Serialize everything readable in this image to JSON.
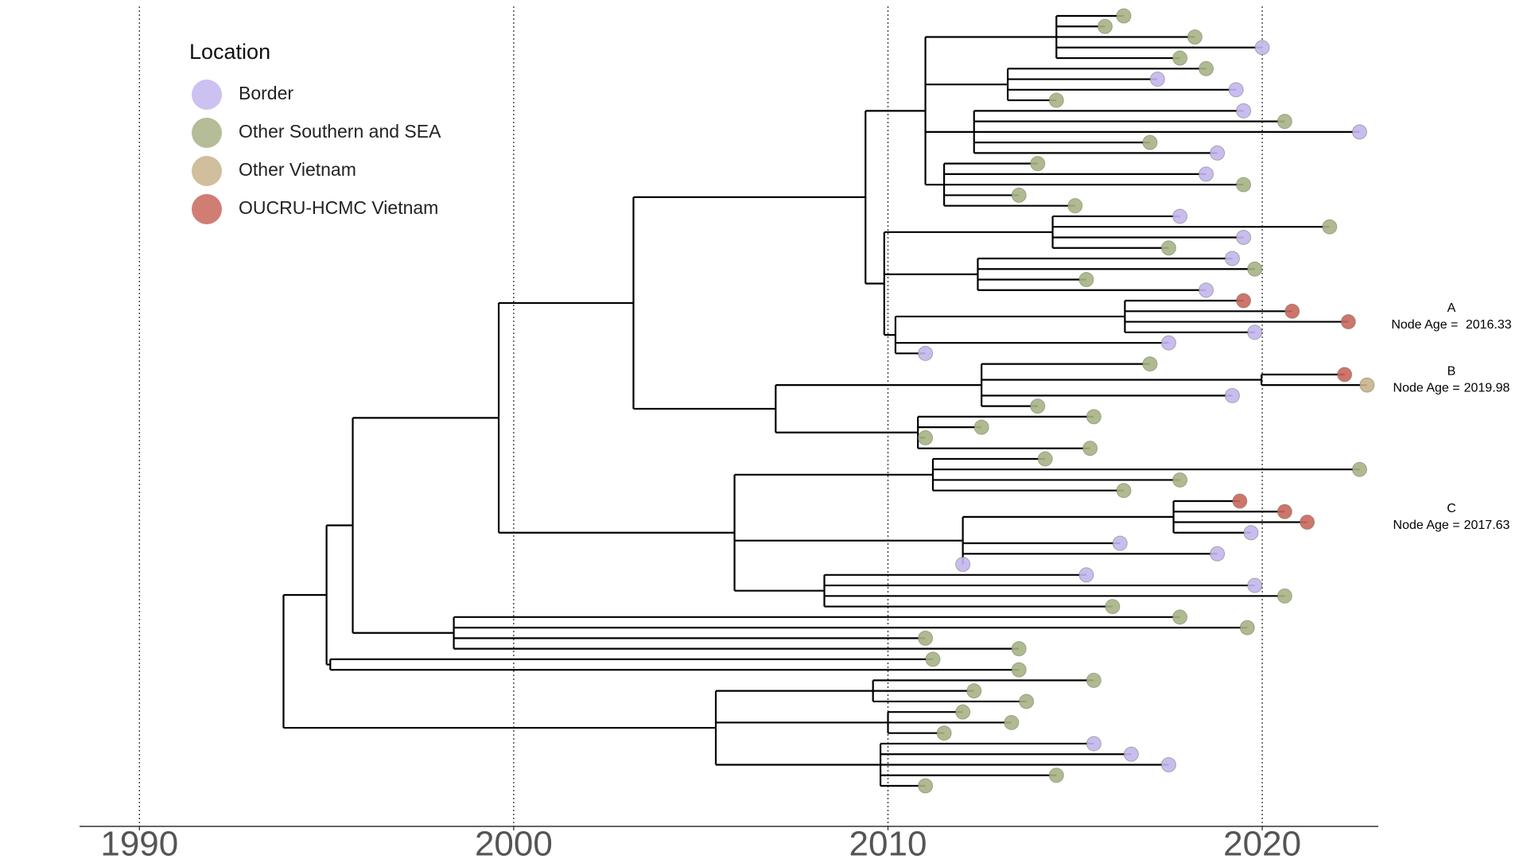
{
  "chart_data": {
    "type": "tree",
    "legend": {
      "title": "Location",
      "position": "top-left",
      "names": [
        "Border",
        "Other Southern and SEA",
        "Other Vietnam",
        "OUCRU-HCMC Vietnam"
      ],
      "colors": [
        "#c3b6ee",
        "#a7b285",
        "#c8b38c",
        "#c9665c"
      ]
    },
    "xlim": [
      1988.4,
      2023.1
    ],
    "xticks": [
      1990,
      2000,
      2010,
      2020
    ],
    "grid": true,
    "annotations": [
      {
        "label": "A",
        "text": "Node Age = ",
        "value": 2016.33
      },
      {
        "label": "B",
        "text": "Node Age =",
        "value": 2019.98
      },
      {
        "label": "C",
        "text": "Node Age =",
        "value": 2017.63
      }
    ],
    "tree": {
      "t": 1993.85,
      "c": [
        {
          "t": 1995.0,
          "c": [
            {
              "t": 1995.7,
              "c": [
                {
                  "t": 1999.6,
                  "c": [
                    {
                      "t": 2003.2,
                      "c": [
                        {
                          "t": 2009.4,
                          "c": [
                            {
                              "t": 2011.0,
                              "c": [
                                {
                                  "t": 2014.5,
                                  "c": [
                                    {
                                      "t": 2016.3,
                                      "loc": 1
                                    },
                                    {
                                      "t": 2015.8,
                                      "loc": 1
                                    },
                                    {
                                      "t": 2018.2,
                                      "loc": 1
                                    },
                                    {
                                      "t": 2020.0,
                                      "loc": 0
                                    },
                                    {
                                      "t": 2017.8,
                                      "loc": 1
                                    }
                                  ]
                                },
                                {
                                  "t": 2013.2,
                                  "c": [
                                    {
                                      "t": 2018.5,
                                      "loc": 1
                                    },
                                    {
                                      "t": 2017.2,
                                      "loc": 0
                                    },
                                    {
                                      "t": 2019.3,
                                      "loc": 0
                                    },
                                    {
                                      "t": 2014.5,
                                      "loc": 1
                                    }
                                  ]
                                },
                                {
                                  "t": 2012.3,
                                  "c": [
                                    {
                                      "t": 2019.5,
                                      "loc": 0
                                    },
                                    {
                                      "t": 2020.6,
                                      "loc": 1
                                    },
                                    {
                                      "t": 2022.6,
                                      "loc": 0
                                    },
                                    {
                                      "t": 2017.0,
                                      "loc": 1
                                    },
                                    {
                                      "t": 2018.8,
                                      "loc": 0
                                    }
                                  ]
                                },
                                {
                                  "t": 2011.5,
                                  "c": [
                                    {
                                      "t": 2014.0,
                                      "loc": 1
                                    },
                                    {
                                      "t": 2018.5,
                                      "loc": 0
                                    },
                                    {
                                      "t": 2019.5,
                                      "loc": 1
                                    },
                                    {
                                      "t": 2013.5,
                                      "loc": 1
                                    },
                                    {
                                      "t": 2015.0,
                                      "loc": 1
                                    }
                                  ]
                                }
                              ]
                            },
                            {
                              "t": 2009.9,
                              "c": [
                                {
                                  "t": 2014.4,
                                  "c": [
                                    {
                                      "t": 2017.8,
                                      "loc": 0
                                    },
                                    {
                                      "t": 2021.8,
                                      "loc": 1
                                    },
                                    {
                                      "t": 2019.5,
                                      "loc": 0
                                    },
                                    {
                                      "t": 2017.5,
                                      "loc": 1
                                    }
                                  ]
                                },
                                {
                                  "t": 2012.4,
                                  "c": [
                                    {
                                      "t": 2019.2,
                                      "loc": 0
                                    },
                                    {
                                      "t": 2019.8,
                                      "loc": 1
                                    },
                                    {
                                      "t": 2015.3,
                                      "loc": 1
                                    },
                                    {
                                      "t": 2018.5,
                                      "loc": 0
                                    }
                                  ]
                                },
                                {
                                  "t": 2010.2,
                                  "c": [
                                    {
                                      "t": 2016.33,
                                      "c": [
                                        {
                                          "t": 2019.5,
                                          "loc": 3
                                        },
                                        {
                                          "t": 2020.8,
                                          "loc": 3
                                        },
                                        {
                                          "t": 2022.3,
                                          "loc": 3
                                        },
                                        {
                                          "t": 2019.8,
                                          "loc": 0
                                        }
                                      ]
                                    },
                                    {
                                      "t": 2017.5,
                                      "loc": 0
                                    },
                                    {
                                      "t": 2011.0,
                                      "loc": 0
                                    }
                                  ]
                                }
                              ]
                            }
                          ]
                        },
                        {
                          "t": 2007.0,
                          "c": [
                            {
                              "t": 2012.5,
                              "c": [
                                {
                                  "t": 2017.0,
                                  "loc": 1
                                },
                                {
                                  "t": 2019.98,
                                  "c": [
                                    {
                                      "t": 2022.2,
                                      "loc": 3
                                    },
                                    {
                                      "t": 2022.8,
                                      "loc": 2
                                    }
                                  ]
                                },
                                {
                                  "t": 2019.2,
                                  "loc": 0
                                },
                                {
                                  "t": 2014.0,
                                  "loc": 1
                                }
                              ]
                            },
                            {
                              "t": 2010.8,
                              "c": [
                                {
                                  "t": 2015.5,
                                  "loc": 1
                                },
                                {
                                  "t": 2012.5,
                                  "loc": 1
                                },
                                {
                                  "t": 2011.0,
                                  "loc": 1
                                },
                                {
                                  "t": 2015.4,
                                  "loc": 1
                                }
                              ]
                            }
                          ]
                        }
                      ]
                    },
                    {
                      "t": 2005.9,
                      "c": [
                        {
                          "t": 2011.2,
                          "c": [
                            {
                              "t": 2014.2,
                              "loc": 1
                            },
                            {
                              "t": 2022.6,
                              "loc": 1
                            },
                            {
                              "t": 2017.8,
                              "loc": 1
                            },
                            {
                              "t": 2016.3,
                              "loc": 1
                            }
                          ]
                        },
                        {
                          "t": 2012.0,
                          "c": [
                            {
                              "t": 2017.63,
                              "c": [
                                {
                                  "t": 2019.4,
                                  "loc": 3
                                },
                                {
                                  "t": 2020.6,
                                  "loc": 3
                                },
                                {
                                  "t": 2021.2,
                                  "loc": 3
                                },
                                {
                                  "t": 2019.7,
                                  "loc": 0
                                }
                              ]
                            },
                            {
                              "t": 2016.2,
                              "loc": 0
                            },
                            {
                              "t": 2018.8,
                              "loc": 0
                            },
                            {
                              "t": 2012.0,
                              "loc": 0
                            }
                          ]
                        },
                        {
                          "t": 2008.3,
                          "c": [
                            {
                              "t": 2015.3,
                              "loc": 0
                            },
                            {
                              "t": 2019.8,
                              "loc": 0
                            },
                            {
                              "t": 2020.6,
                              "loc": 1
                            },
                            {
                              "t": 2016.0,
                              "loc": 1
                            }
                          ]
                        }
                      ]
                    }
                  ]
                },
                {
                  "t": 1998.4,
                  "c": [
                    {
                      "t": 2017.8,
                      "loc": 1
                    },
                    {
                      "t": 2019.6,
                      "loc": 1
                    },
                    {
                      "t": 2011.0,
                      "loc": 1
                    },
                    {
                      "t": 2013.5,
                      "loc": 1
                    }
                  ]
                }
              ]
            },
            {
              "t": 1995.1,
              "c": [
                {
                  "t": 2011.2,
                  "loc": 1
                },
                {
                  "t": 2013.5,
                  "loc": 1
                }
              ]
            }
          ]
        },
        {
          "t": 1997.1,
          "c": [
            {
              "t": 2005.4,
              "c": [
                {
                  "t": 2009.6,
                  "c": [
                    {
                      "t": 2015.5,
                      "loc": 1
                    },
                    {
                      "t": 2012.3,
                      "loc": 1
                    },
                    {
                      "t": 2013.7,
                      "loc": 1
                    }
                  ]
                },
                {
                  "t": 2010.0,
                  "c": [
                    {
                      "t": 2012.0,
                      "loc": 1
                    },
                    {
                      "t": 2013.3,
                      "loc": 1
                    },
                    {
                      "t": 2011.5,
                      "loc": 1
                    }
                  ]
                },
                {
                  "t": 2009.8,
                  "c": [
                    {
                      "t": 2015.5,
                      "loc": 0
                    },
                    {
                      "t": 2016.5,
                      "loc": 0
                    },
                    {
                      "t": 2017.5,
                      "loc": 0
                    },
                    {
                      "t": 2014.5,
                      "loc": 1
                    },
                    {
                      "t": 2011.0,
                      "loc": 1
                    }
                  ]
                }
              ]
            }
          ]
        }
      ]
    }
  }
}
